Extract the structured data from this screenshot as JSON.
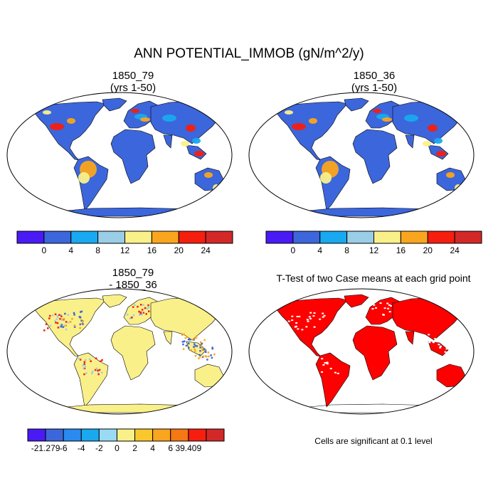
{
  "title": "ANN POTENTIAL_IMMOB (gN/m^2/y)",
  "panels": [
    {
      "title_line1": "1850_79",
      "title_line2": "(yrs 1-50)"
    },
    {
      "title_line1": "1850_36",
      "title_line2": "(yrs 1-50)"
    },
    {
      "title_line1": "1850_79",
      "title_line2": "- 1850_36"
    },
    {
      "title_line1": "T-Test of two Case means at each grid point",
      "title_line2": ""
    }
  ],
  "colorbar_case": {
    "colors": [
      "#4A1AF5",
      "#3C66DB",
      "#19A9F0",
      "#9ACDE6",
      "#FAF08A",
      "#FAA51E",
      "#F51E0F",
      "#D22828"
    ],
    "tick_labels": [
      "0",
      "4",
      "8",
      "12",
      "16",
      "20",
      "24"
    ]
  },
  "colorbar_diff": {
    "colors": [
      "#4A1AF5",
      "#3C66DB",
      "#2A8AF0",
      "#19A9F0",
      "#9ADAF5",
      "#FAF08A",
      "#FAC82D",
      "#FAA51E",
      "#F57814",
      "#F51E0F",
      "#D22828"
    ],
    "tick_labels": [
      "-21.279",
      "-6",
      "-4",
      "-2",
      "0",
      "2",
      "4",
      "6",
      "39.409"
    ]
  },
  "map_colors": {
    "ocean": "#ffffff",
    "case_land": "#3C66DB",
    "case_high": [
      "#F51E0F",
      "#FAA51E",
      "#FAF08A",
      "#19A9F0"
    ],
    "diff_land": "#FAF08A",
    "diff_marks": [
      "#F51E0F",
      "#3C66DB",
      "#9ACDE6",
      "#FAA51E"
    ],
    "ttest_sig": "#FF0000"
  },
  "significance_note": "Cells are significant at 0.1 level",
  "chart_data": {
    "type": "heatmap",
    "title": "ANN POTENTIAL_IMMOB (gN/m^2/y)",
    "units": "gN/m^2/y",
    "panels": [
      {
        "case": "1850_79",
        "subtitle": "(yrs 1-50)",
        "levels": [
          0,
          4,
          8,
          12,
          16,
          20,
          24
        ]
      },
      {
        "case": "1850_36",
        "subtitle": "(yrs 1-50)",
        "levels": [
          0,
          4,
          8,
          12,
          16,
          20,
          24
        ]
      },
      {
        "case": "1850_79 - 1850_36",
        "levels": [
          -21.279,
          -6,
          -4,
          -2,
          0,
          2,
          4,
          6,
          39.409
        ]
      },
      {
        "case": "T-Test of two Case means at each grid point",
        "significance_level": 0.1
      }
    ]
  }
}
